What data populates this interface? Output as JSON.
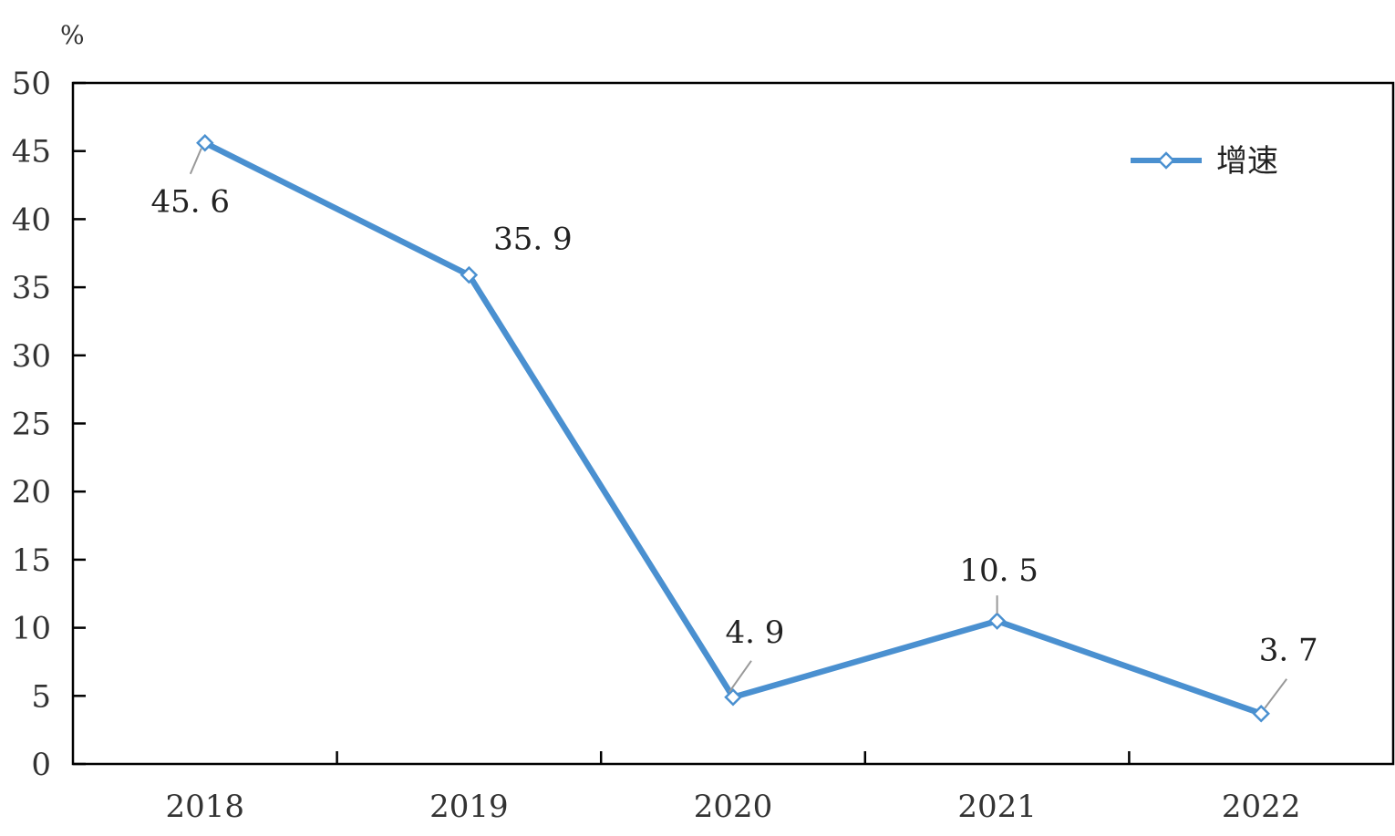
{
  "chart_data": {
    "type": "line",
    "categories": [
      "2018",
      "2019",
      "2020",
      "2021",
      "2022"
    ],
    "series": [
      {
        "name": "增速",
        "values": [
          45.6,
          35.9,
          4.9,
          10.5,
          3.7
        ]
      }
    ],
    "data_labels": [
      "45. 6",
      "35. 9",
      "4. 9",
      "10. 5",
      "3. 7"
    ],
    "y_unit": "%",
    "ylim": [
      0,
      50
    ],
    "y_ticks": [
      0,
      5,
      10,
      15,
      20,
      25,
      30,
      35,
      40,
      45,
      50
    ],
    "line_color": "#4a90d0",
    "marker": "diamond",
    "grid": false,
    "legend_position": "top-right"
  }
}
